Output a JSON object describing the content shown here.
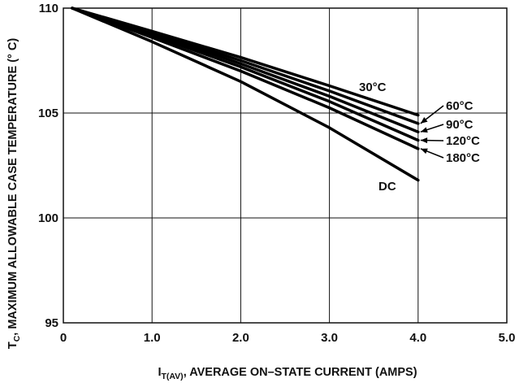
{
  "chart_data": {
    "type": "line",
    "xlabel_main": "I",
    "xlabel_sub": "T(AV)",
    "xlabel_rest": ", AVERAGE ON–STATE CURRENT (AMPS)",
    "ylabel_main": "T",
    "ylabel_sub": "C",
    "ylabel_rest": ", MAXIMUM ALLOWABLE CASE TEMPERATURE (° C)",
    "xlim": [
      0,
      5
    ],
    "ylim": [
      95,
      110
    ],
    "x_ticks": [
      0,
      1,
      2,
      3,
      4,
      5
    ],
    "x_tick_labels": [
      "0",
      "1.0",
      "2.0",
      "3.0",
      "4.0",
      "5.0"
    ],
    "y_ticks": [
      95,
      100,
      105,
      110
    ],
    "y_tick_labels": [
      "95",
      "100",
      "105",
      "110"
    ],
    "grid": true,
    "series": [
      {
        "name": "30°C",
        "x": [
          0.1,
          1.0,
          2.0,
          3.0,
          4.0
        ],
        "y": [
          110.0,
          108.9,
          107.65,
          106.3,
          104.9
        ]
      },
      {
        "name": "60°C",
        "x": [
          0.1,
          1.0,
          2.0,
          3.0,
          4.0
        ],
        "y": [
          110.0,
          108.85,
          107.5,
          106.05,
          104.5
        ]
      },
      {
        "name": "90°C",
        "x": [
          0.1,
          1.0,
          2.0,
          3.0,
          4.0
        ],
        "y": [
          110.0,
          108.8,
          107.35,
          105.8,
          104.1
        ]
      },
      {
        "name": "120°C",
        "x": [
          0.1,
          1.0,
          2.0,
          3.0,
          4.0
        ],
        "y": [
          110.0,
          108.7,
          107.2,
          105.55,
          103.7
        ]
      },
      {
        "name": "180°C",
        "x": [
          0.1,
          1.0,
          2.0,
          3.0,
          4.0
        ],
        "y": [
          110.0,
          108.6,
          107.0,
          105.25,
          103.3
        ]
      },
      {
        "name": "DC",
        "x": [
          0.1,
          1.0,
          2.0,
          3.0,
          4.0
        ],
        "y": [
          110.0,
          108.4,
          106.5,
          104.3,
          101.8
        ]
      }
    ]
  }
}
